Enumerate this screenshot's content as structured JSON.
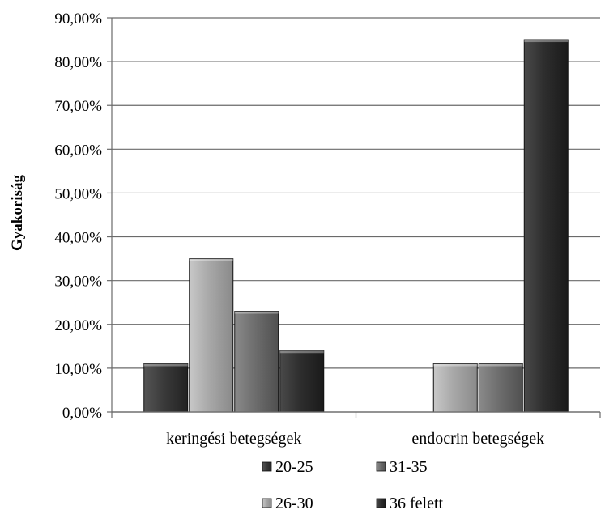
{
  "chart_data": {
    "type": "bar",
    "categories": [
      "keringési betegségek",
      "endocrin betegségek"
    ],
    "series": [
      {
        "name": "20-25",
        "values": [
          11,
          0
        ]
      },
      {
        "name": "26-30",
        "values": [
          35,
          11
        ]
      },
      {
        "name": "31-35",
        "values": [
          23,
          11
        ]
      },
      {
        "name": "36 felett",
        "values": [
          14,
          85
        ]
      }
    ],
    "ylabel": "Gyakoriság",
    "ylim": [
      0,
      90
    ],
    "yticks": [
      "0,00%",
      "10,00%",
      "20,00%",
      "30,00%",
      "40,00%",
      "50,00%",
      "60,00%",
      "70,00%",
      "80,00%",
      "90,00%"
    ],
    "grid": true,
    "legend": "bottom",
    "colors": {
      "20-25": "#3a3a3a",
      "26-30": "#a8a8a8",
      "31-35": "#6e6e6e",
      "36 felett": "#2e2e2e"
    }
  }
}
